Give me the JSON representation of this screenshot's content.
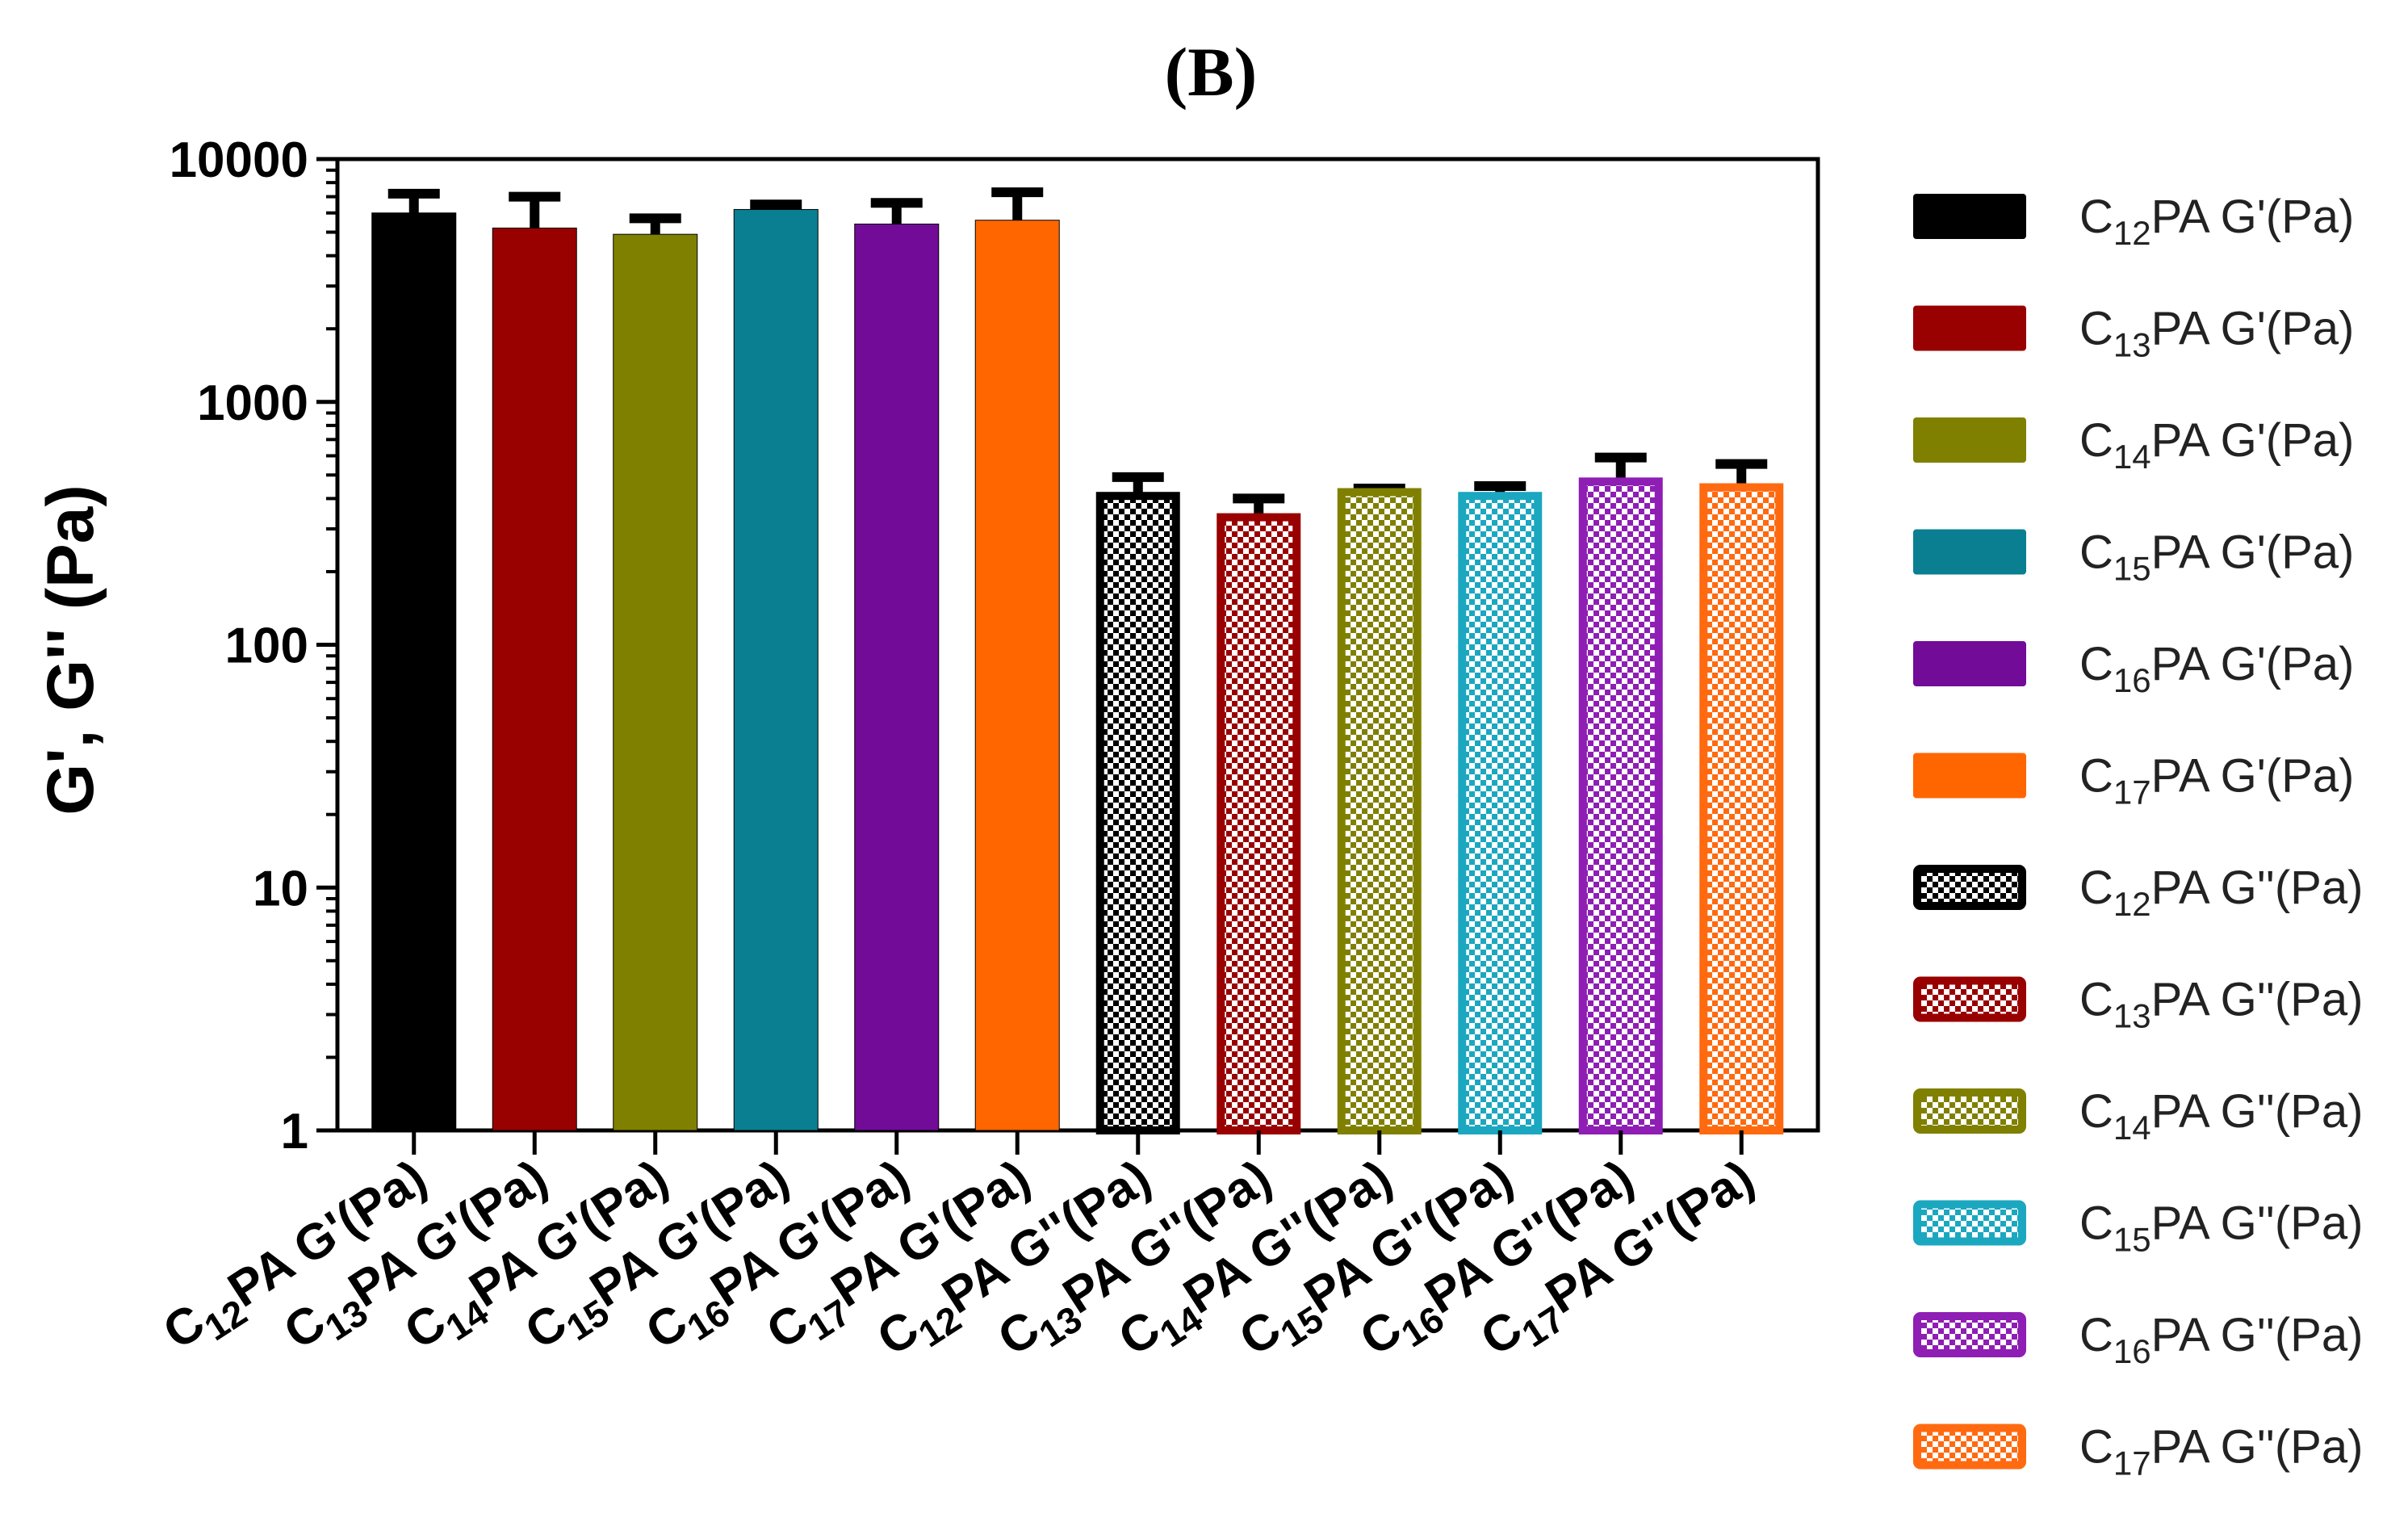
{
  "chart_data": {
    "type": "bar",
    "title": "(B)",
    "ylabel": "G', G'' (Pa)",
    "xlabel": "",
    "yscale": "log",
    "ylim": [
      1,
      10000
    ],
    "yticks": [
      "1",
      "10",
      "100",
      "1000",
      "10000"
    ],
    "legend_position": "right",
    "categories": [
      "C12PA G'(Pa)",
      "C13PA G'(Pa)",
      "C14PA G'(Pa)",
      "C15PA G'(Pa)",
      "C16PA G'(Pa)",
      "C17PA G'(Pa)",
      "C12PA G''(Pa)",
      "C13PA G''(Pa)",
      "C14PA G''(Pa)",
      "C15PA G''(Pa)",
      "C16PA G''(Pa)",
      "C17PA G''(Pa)"
    ],
    "series": [
      {
        "name": "C12PA G'(Pa)",
        "prefix": "C",
        "sub": "12",
        "suffix": "PA G'(Pa)",
        "value": 6000,
        "error": 1200,
        "color": "#000000",
        "pattern": "solid"
      },
      {
        "name": "C13PA G'(Pa)",
        "prefix": "C",
        "sub": "13",
        "suffix": "PA G'(Pa)",
        "value": 5200,
        "error": 1800,
        "color": "#990000",
        "pattern": "solid"
      },
      {
        "name": "C14PA G'(Pa)",
        "prefix": "C",
        "sub": "14",
        "suffix": "PA G'(Pa)",
        "value": 4900,
        "error": 800,
        "color": "#808000",
        "pattern": "solid"
      },
      {
        "name": "C15PA G'(Pa)",
        "prefix": "C",
        "sub": "15",
        "suffix": "PA G'(Pa)",
        "value": 6200,
        "error": 300,
        "color": "#0A7F91",
        "pattern": "solid"
      },
      {
        "name": "C16PA G'(Pa)",
        "prefix": "C",
        "sub": "16",
        "suffix": "PA G'(Pa)",
        "value": 5400,
        "error": 1200,
        "color": "#720B98",
        "pattern": "solid"
      },
      {
        "name": "C17PA G'(Pa)",
        "prefix": "C",
        "sub": "17",
        "suffix": "PA G'(Pa)",
        "value": 5600,
        "error": 1700,
        "color": "#FF6600",
        "pattern": "solid"
      },
      {
        "name": "C12PA G''(Pa)",
        "prefix": "C",
        "sub": "12",
        "suffix": "PA G''(Pa)",
        "value": 410,
        "error": 80,
        "color": "#000000",
        "pattern": "checker"
      },
      {
        "name": "C13PA G''(Pa)",
        "prefix": "C",
        "sub": "13",
        "suffix": "PA G''(Pa)",
        "value": 335,
        "error": 65,
        "color": "#990000",
        "pattern": "checker"
      },
      {
        "name": "C14PA G''(Pa)",
        "prefix": "C",
        "sub": "14",
        "suffix": "PA G''(Pa)",
        "value": 425,
        "error": 15,
        "color": "#808000",
        "pattern": "checker"
      },
      {
        "name": "C15PA G''(Pa)",
        "prefix": "C",
        "sub": "15",
        "suffix": "PA G''(Pa)",
        "value": 410,
        "error": 40,
        "color": "#1BA7C0",
        "pattern": "checker"
      },
      {
        "name": "C16PA G''(Pa)",
        "prefix": "C",
        "sub": "16",
        "suffix": "PA G''(Pa)",
        "value": 470,
        "error": 120,
        "color": "#8E1EB4",
        "pattern": "checker"
      },
      {
        "name": "C17PA G''(Pa)",
        "prefix": "C",
        "sub": "17",
        "suffix": "PA G''(Pa)",
        "value": 445,
        "error": 110,
        "color": "#FF6A10",
        "pattern": "checker"
      }
    ]
  }
}
